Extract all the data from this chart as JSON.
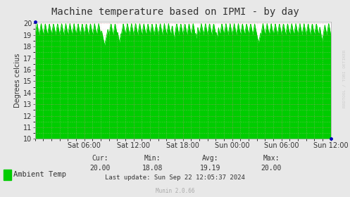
{
  "title": "Machine temperature based on IPMI - by day",
  "ylabel": "Degrees celcius",
  "bg_color": "#e8e8e8",
  "plot_bg_color": "#ffffff",
  "line_color": "#00cc00",
  "fill_color": "#00cc00",
  "ylim": [
    10,
    20
  ],
  "yticks": [
    10,
    11,
    12,
    13,
    14,
    15,
    16,
    17,
    18,
    19,
    20
  ],
  "xtick_labels": [
    "Sat 06:00",
    "Sat 12:00",
    "Sat 18:00",
    "Sun 00:00",
    "Sun 06:00",
    "Sun 12:00"
  ],
  "xtick_positions": [
    21600,
    43200,
    64800,
    86400,
    108000,
    129600
  ],
  "x_total": 129600,
  "legend_label": "Ambient Temp",
  "legend_color": "#00cc00",
  "cur_val": "20.00",
  "min_val": "18.08",
  "avg_val": "19.19",
  "max_val": "20.00",
  "last_update": "Last update: Sun Sep 22 12:05:37 2024",
  "munin_version": "Munin 2.0.66",
  "watermark": "RRDTOOL / TOBI OETIKER",
  "title_fontsize": 10,
  "axis_fontsize": 7,
  "legend_fontsize": 7.5,
  "stats_fontsize": 7,
  "major_grid_color": "#cc8888",
  "minor_grid_color": "#e8bbbb"
}
